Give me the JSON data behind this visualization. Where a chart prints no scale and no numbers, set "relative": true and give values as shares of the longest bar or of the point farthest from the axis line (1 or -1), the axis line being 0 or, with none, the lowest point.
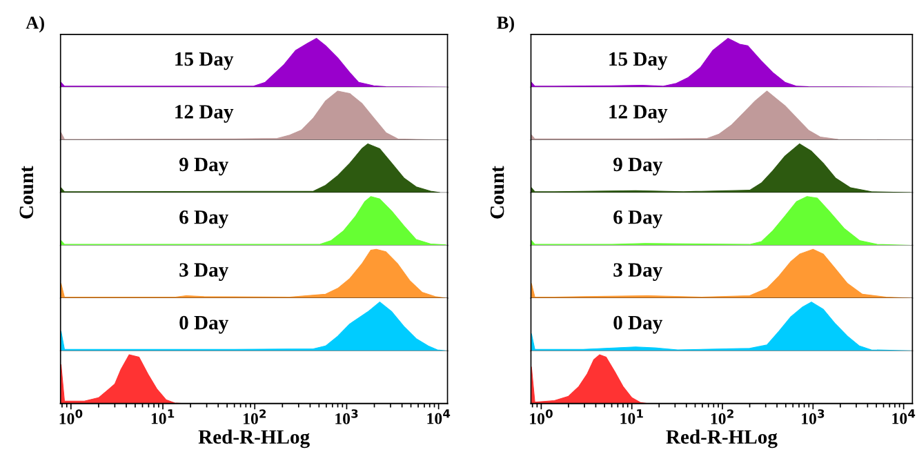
{
  "chart_data": [
    {
      "type": "area",
      "title": "A)",
      "relative": true,
      "log": "x",
      "xlim": [
        0.77,
        12500
      ],
      "tick_labels": false,
      "color": "#9900cc",
      "annotations": [
        "15 Day"
      ],
      "x": [
        0.78,
        0.85,
        1.4,
        96,
        130,
        205,
        277,
        375,
        470,
        590,
        800,
        1080,
        1350,
        1970,
        2670,
        12000
      ],
      "values": [
        0.1,
        0.02,
        0.02,
        0.02,
        0.1,
        0.45,
        0.75,
        0.9,
        1.0,
        0.85,
        0.6,
        0.3,
        0.1,
        0.03,
        0.01,
        0
      ]
    },
    {
      "type": "area",
      "relative": true,
      "log": "x",
      "xlim": [
        0.77,
        12500
      ],
      "tick_labels": false,
      "color": "#c09a9a",
      "annotations": [
        "12 Day"
      ],
      "x": [
        0.78,
        0.85,
        1.4,
        61,
        176,
        240,
        322,
        435,
        590,
        800,
        1080,
        1460,
        1970,
        2670,
        3600,
        5700,
        12000
      ],
      "values": [
        0.15,
        0.01,
        0.01,
        0.02,
        0.03,
        0.1,
        0.2,
        0.45,
        0.8,
        1.0,
        0.95,
        0.75,
        0.45,
        0.15,
        0.02,
        0.01,
        0
      ]
    },
    {
      "type": "area",
      "relative": true,
      "log": "x",
      "xlim": [
        0.77,
        12500
      ],
      "tick_labels": false,
      "color": "#2d5a10",
      "annotations": [
        "9 Day"
      ],
      "x": [
        0.78,
        0.85,
        1.4,
        435,
        590,
        800,
        1080,
        1460,
        1700,
        2290,
        3100,
        4200,
        5700,
        8200,
        10300
      ],
      "values": [
        0.1,
        0.02,
        0.02,
        0.03,
        0.15,
        0.35,
        0.6,
        0.9,
        1.0,
        0.9,
        0.6,
        0.3,
        0.12,
        0.03,
        0
      ]
    },
    {
      "type": "area",
      "ylabel": "Count",
      "relative": true,
      "log": "x",
      "xlim": [
        0.77,
        12500
      ],
      "tick_labels": false,
      "color": "#66ff33",
      "annotations": [
        "6 Day"
      ],
      "x": [
        0.78,
        0.85,
        1.4,
        505,
        680,
        925,
        1250,
        1580,
        1830,
        2290,
        3100,
        4200,
        5700,
        8200,
        12000
      ],
      "values": [
        0.1,
        0.02,
        0.02,
        0.02,
        0.1,
        0.3,
        0.6,
        0.9,
        1.0,
        0.95,
        0.7,
        0.4,
        0.12,
        0.03,
        0.01
      ]
    },
    {
      "type": "area",
      "relative": true,
      "log": "x",
      "xlim": [
        0.77,
        12500
      ],
      "tick_labels": false,
      "color": "#ff9933",
      "annotations": [
        "3 Day"
      ],
      "x": [
        0.78,
        0.85,
        1.4,
        13.5,
        18,
        28,
        240,
        590,
        800,
        1080,
        1460,
        1830,
        2100,
        2670,
        3600,
        4900,
        6600,
        9200,
        12000
      ],
      "values": [
        0.3,
        0.02,
        0.02,
        0.02,
        0.05,
        0.03,
        0.02,
        0.08,
        0.2,
        0.4,
        0.7,
        0.98,
        1.0,
        0.95,
        0.7,
        0.35,
        0.12,
        0.03,
        0
      ]
    },
    {
      "type": "area",
      "relative": true,
      "log": "x",
      "xlim": [
        0.77,
        12500
      ],
      "tick_labels": false,
      "color": "#00ccff",
      "annotations": [
        "0 Day"
      ],
      "x": [
        0.78,
        0.85,
        1.4,
        13.5,
        61,
        435,
        590,
        800,
        1080,
        1700,
        2290,
        3100,
        4200,
        5700,
        7700,
        9700,
        12000
      ],
      "values": [
        0.4,
        0.03,
        0.03,
        0.03,
        0.03,
        0.04,
        0.1,
        0.3,
        0.55,
        0.8,
        1.0,
        0.8,
        0.5,
        0.25,
        0.1,
        0.02,
        0
      ]
    },
    {
      "type": "area",
      "xlabel": "Red-R-HLog",
      "relative": true,
      "log": "x",
      "xlim": [
        0.77,
        12500
      ],
      "tick_labels": "x",
      "color": "#ff3333",
      "xticks": [
        {
          "value": 1,
          "label": "10$^{0}$"
        },
        {
          "value": 10,
          "label": "10$^{1}$"
        },
        {
          "value": 100,
          "label": "10$^{2}$"
        },
        {
          "value": 1000,
          "label": "10$^{3}$"
        },
        {
          "value": 10000,
          "label": "10$^{4}$"
        }
      ],
      "x": [
        0.78,
        0.85,
        1.4,
        2.0,
        2.6,
        3.0,
        3.5,
        4.3,
        5.5,
        6.9,
        8.6,
        10.8,
        13.5,
        17
      ],
      "values": [
        0.8,
        0.05,
        0.05,
        0.12,
        0.3,
        0.4,
        0.7,
        1.0,
        0.95,
        0.6,
        0.3,
        0.08,
        0.01,
        0
      ]
    },
    {
      "type": "area",
      "title": "B)",
      "relative": true,
      "log": "x",
      "xlim": [
        0.77,
        12500
      ],
      "tick_labels": false,
      "color": "#9900cc",
      "annotations": [
        "15 Day"
      ],
      "x": [
        0.78,
        0.85,
        1.4,
        5.9,
        13,
        22,
        31,
        42,
        57,
        78,
        115,
        155,
        190,
        265,
        360,
        490,
        660,
        890,
        12000
      ],
      "values": [
        0.1,
        0.02,
        0.02,
        0.03,
        0.04,
        0.02,
        0.08,
        0.2,
        0.4,
        0.75,
        1.0,
        0.88,
        0.85,
        0.55,
        0.3,
        0.1,
        0.02,
        0.01,
        0
      ]
    },
    {
      "type": "area",
      "relative": true,
      "log": "x",
      "xlim": [
        0.77,
        12500
      ],
      "tick_labels": false,
      "color": "#c09a9a",
      "annotations": [
        "12 Day"
      ],
      "x": [
        0.78,
        0.85,
        1.4,
        6,
        15,
        68,
        92,
        125,
        170,
        230,
        310,
        390,
        490,
        660,
        890,
        1200,
        1900,
        12000
      ],
      "values": [
        0.1,
        0.02,
        0.02,
        0.02,
        0.02,
        0.03,
        0.12,
        0.3,
        0.55,
        0.8,
        1.0,
        0.85,
        0.7,
        0.45,
        0.2,
        0.06,
        0.01,
        0
      ]
    },
    {
      "type": "area",
      "relative": true,
      "log": "x",
      "xlim": [
        0.77,
        12500
      ],
      "tick_labels": false,
      "color": "#2d5a10",
      "annotations": [
        "9 Day"
      ],
      "x": [
        0.78,
        0.85,
        1.4,
        11,
        37,
        200,
        270,
        360,
        490,
        710,
        960,
        1300,
        1770,
        2600,
        4400,
        12000
      ],
      "values": [
        0.1,
        0.02,
        0.02,
        0.04,
        0.02,
        0.05,
        0.2,
        0.45,
        0.75,
        1.0,
        0.85,
        0.6,
        0.3,
        0.1,
        0.02,
        0
      ]
    },
    {
      "type": "area",
      "ylabel": "Count",
      "relative": true,
      "log": "x",
      "xlim": [
        0.77,
        12500
      ],
      "tick_labels": false,
      "color": "#66ff33",
      "annotations": [
        "6 Day"
      ],
      "x": [
        0.78,
        0.85,
        1.4,
        6,
        14,
        200,
        270,
        360,
        490,
        660,
        860,
        1110,
        1510,
        2200,
        3250,
        5100,
        12000
      ],
      "values": [
        0.1,
        0.02,
        0.02,
        0.02,
        0.04,
        0.02,
        0.08,
        0.3,
        0.6,
        0.9,
        1.0,
        0.97,
        0.7,
        0.35,
        0.1,
        0.02,
        0
      ]
    },
    {
      "type": "area",
      "relative": true,
      "log": "x",
      "xlim": [
        0.77,
        12500
      ],
      "tick_labels": false,
      "color": "#ff9933",
      "annotations": [
        "3 Day"
      ],
      "x": [
        0.78,
        0.85,
        1.4,
        2.9,
        15,
        59,
        200,
        310,
        420,
        570,
        710,
        1000,
        1300,
        1770,
        2400,
        3500,
        6400,
        12000
      ],
      "values": [
        0.3,
        0.02,
        0.02,
        0.03,
        0.05,
        0.02,
        0.05,
        0.2,
        0.45,
        0.75,
        0.9,
        1.0,
        0.9,
        0.6,
        0.3,
        0.08,
        0.02,
        0
      ]
    },
    {
      "type": "area",
      "relative": true,
      "log": "x",
      "xlim": [
        0.77,
        12500
      ],
      "tick_labels": false,
      "color": "#00ccff",
      "annotations": [
        "0 Day"
      ],
      "x": [
        0.78,
        0.85,
        1.4,
        2.9,
        11,
        18,
        32,
        200,
        310,
        420,
        570,
        770,
        960,
        1300,
        1770,
        2400,
        3250,
        4400,
        12000
      ],
      "values": [
        0.35,
        0.03,
        0.03,
        0.03,
        0.08,
        0.06,
        0.02,
        0.05,
        0.12,
        0.4,
        0.7,
        0.9,
        1.0,
        0.85,
        0.55,
        0.3,
        0.1,
        0.02,
        0
      ]
    },
    {
      "type": "area",
      "xlabel": "Red-R-HLog",
      "relative": true,
      "log": "x",
      "xlim": [
        0.77,
        12500
      ],
      "tick_labels": "x",
      "color": "#ff3333",
      "xticks": [
        {
          "value": 1,
          "label": "10$^{0}$"
        },
        {
          "value": 10,
          "label": "10$^{1}$"
        },
        {
          "value": 100,
          "label": "10$^{2}$"
        },
        {
          "value": 1000,
          "label": "10$^{3}$"
        },
        {
          "value": 10000,
          "label": "10$^{4}$"
        }
      ],
      "x": [
        0.78,
        0.85,
        1.4,
        2.0,
        2.6,
        3.2,
        3.8,
        4.4,
        5.2,
        6.5,
        8.0,
        10,
        12.5,
        15
      ],
      "values": [
        0.75,
        0.03,
        0.06,
        0.15,
        0.35,
        0.6,
        0.9,
        1.0,
        0.95,
        0.65,
        0.35,
        0.12,
        0.02,
        0
      ]
    }
  ]
}
